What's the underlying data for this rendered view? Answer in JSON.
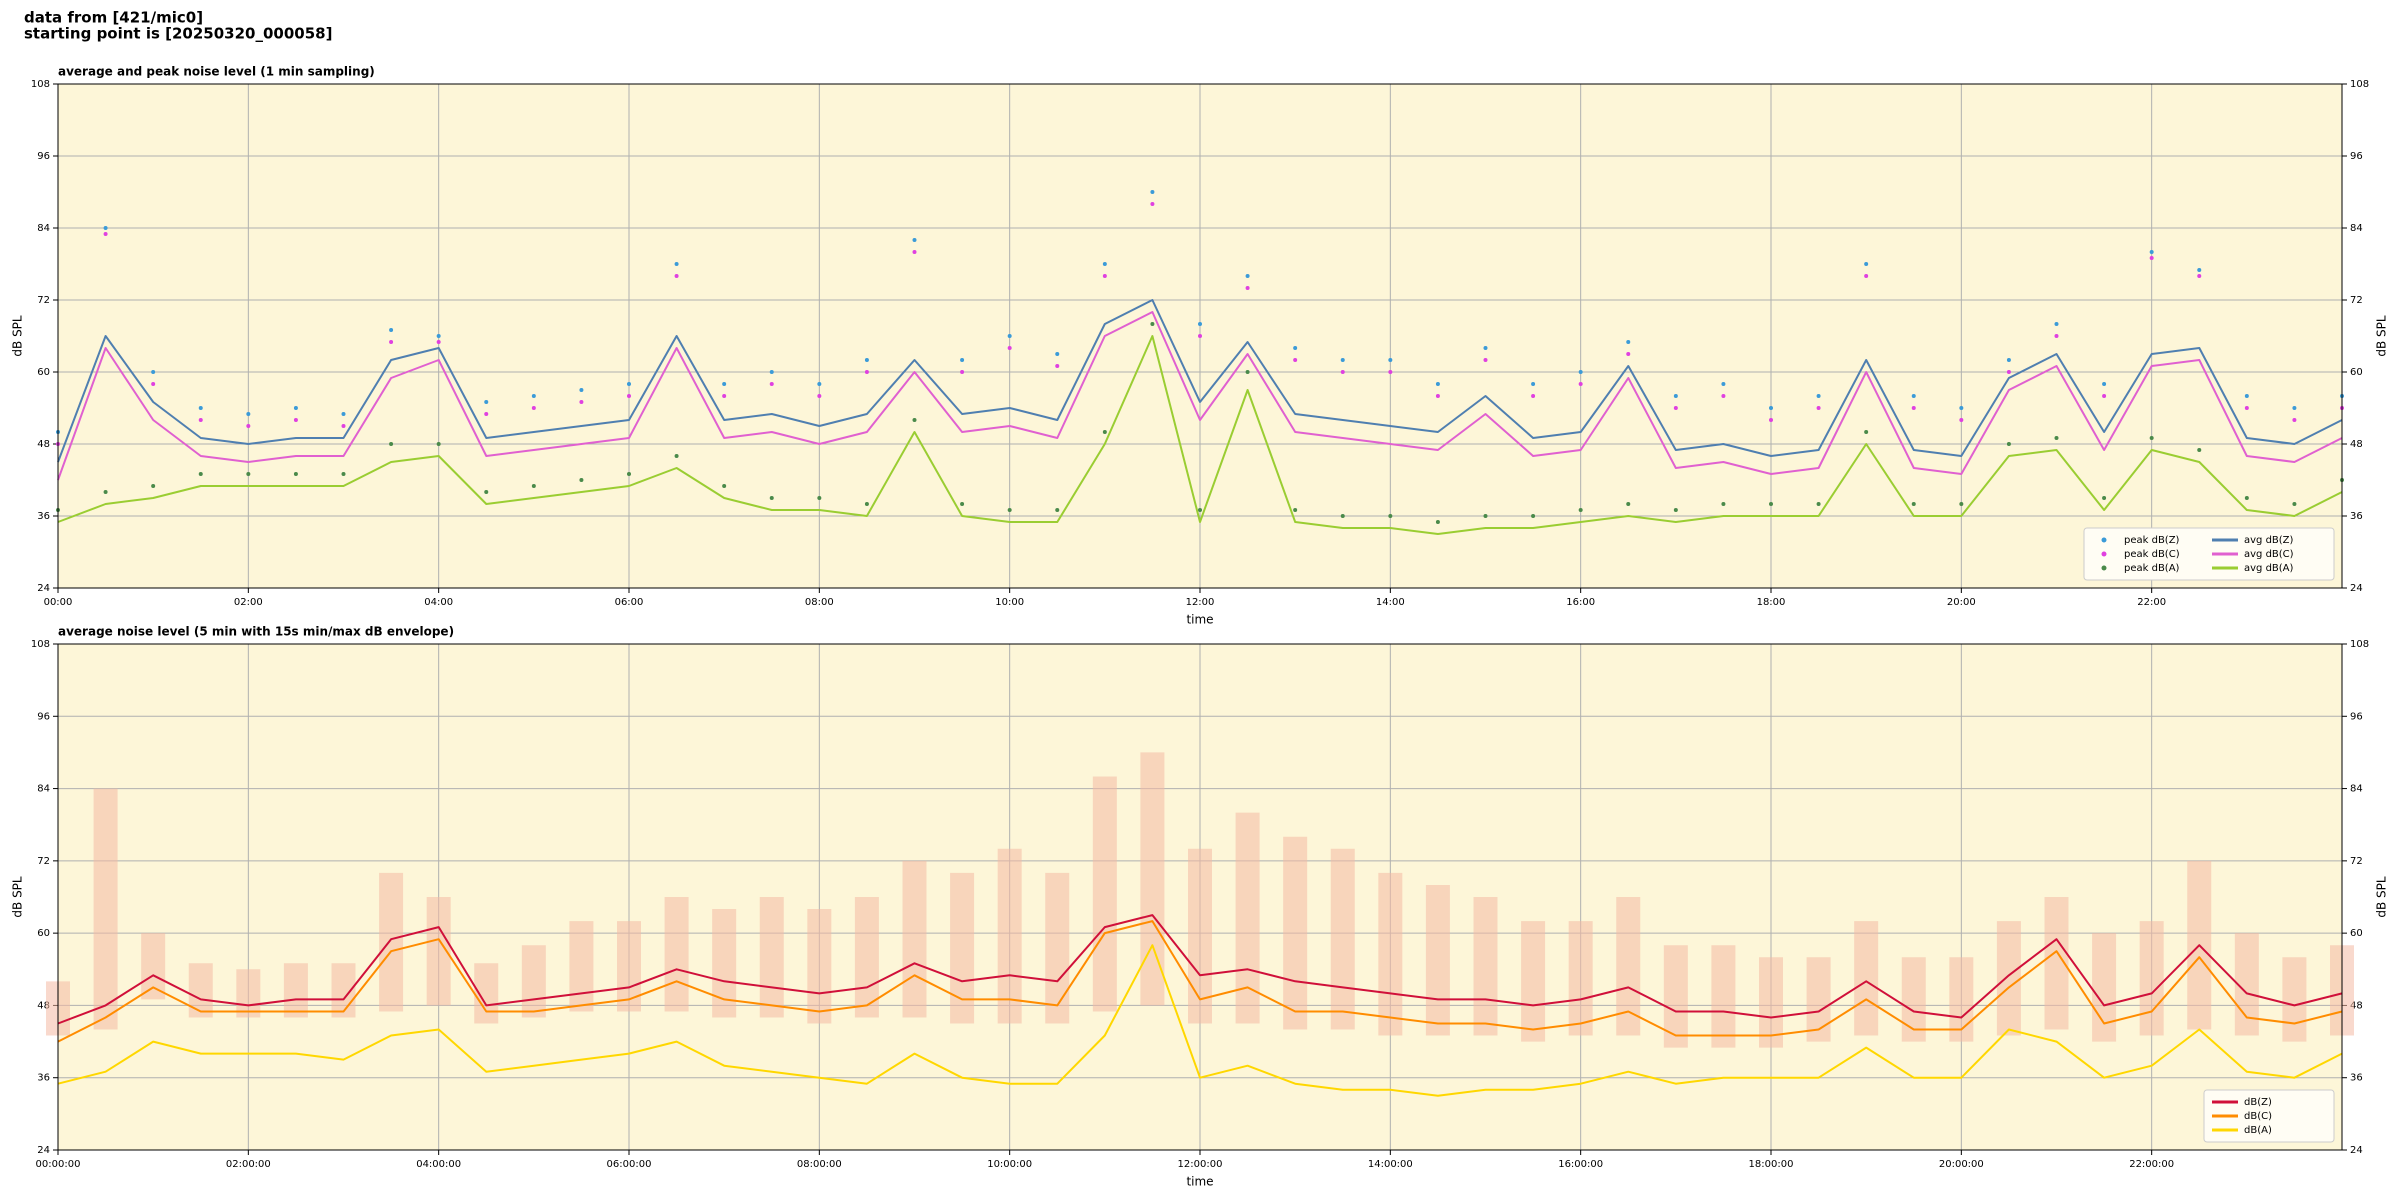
{
  "header": [
    "data from [421/mic0]",
    "starting point is [20250320_000058]"
  ],
  "chart_data": [
    {
      "type": "line",
      "title": "average and peak noise level (1 min sampling)",
      "xlabel": "time",
      "ylabel": "dB SPL",
      "background": "#fdf6d8",
      "grid": true,
      "legend": "lower right",
      "legend_columns": 2,
      "xlim": [
        0,
        24
      ],
      "ylim": [
        24,
        108
      ],
      "yticks": [
        24,
        36,
        48,
        60,
        72,
        84,
        96,
        108
      ],
      "xticks": [
        {
          "value": 0,
          "label": "00:00"
        },
        {
          "value": 2,
          "label": "02:00"
        },
        {
          "value": 4,
          "label": "04:00"
        },
        {
          "value": 6,
          "label": "06:00"
        },
        {
          "value": 8,
          "label": "08:00"
        },
        {
          "value": 10,
          "label": "10:00"
        },
        {
          "value": 12,
          "label": "12:00"
        },
        {
          "value": 14,
          "label": "14:00"
        },
        {
          "value": 16,
          "label": "16:00"
        },
        {
          "value": 18,
          "label": "18:00"
        },
        {
          "value": 20,
          "label": "20:00"
        },
        {
          "value": 22,
          "label": "22:00"
        }
      ],
      "x": [
        0,
        0.5,
        1,
        1.5,
        2,
        2.5,
        3,
        3.5,
        4,
        4.5,
        5,
        5.5,
        6,
        6.5,
        7,
        7.5,
        8,
        8.5,
        9,
        9.5,
        10,
        10.5,
        11,
        11.5,
        12,
        12.5,
        13,
        13.5,
        14,
        14.5,
        15,
        15.5,
        16,
        16.5,
        17,
        17.5,
        18,
        18.5,
        19,
        19.5,
        20,
        20.5,
        21,
        21.5,
        22,
        22.5,
        23,
        23.5,
        24
      ],
      "series": [
        {
          "name": "peak dB(Z)",
          "kind": "scatter",
          "color": "#3b9bd8",
          "values": [
            50,
            84,
            60,
            54,
            53,
            54,
            53,
            67,
            66,
            55,
            56,
            57,
            58,
            78,
            58,
            60,
            58,
            62,
            82,
            62,
            66,
            63,
            78,
            90,
            68,
            76,
            64,
            62,
            62,
            58,
            64,
            58,
            60,
            65,
            56,
            58,
            54,
            56,
            78,
            56,
            54,
            62,
            68,
            58,
            80,
            77,
            56,
            54,
            56
          ]
        },
        {
          "name": "peak dB(C)",
          "kind": "scatter",
          "color": "#e040e0",
          "values": [
            48,
            83,
            58,
            52,
            51,
            52,
            51,
            65,
            65,
            53,
            54,
            55,
            56,
            76,
            56,
            58,
            56,
            60,
            80,
            60,
            64,
            61,
            76,
            88,
            66,
            74,
            62,
            60,
            60,
            56,
            62,
            56,
            58,
            63,
            54,
            56,
            52,
            54,
            76,
            54,
            52,
            60,
            66,
            56,
            79,
            76,
            54,
            52,
            54
          ]
        },
        {
          "name": "peak dB(A)",
          "kind": "scatter",
          "color": "#4a8a4a",
          "values": [
            37,
            40,
            41,
            43,
            43,
            43,
            43,
            48,
            48,
            40,
            41,
            42,
            43,
            46,
            41,
            39,
            39,
            38,
            52,
            38,
            37,
            37,
            50,
            68,
            37,
            60,
            37,
            36,
            36,
            35,
            36,
            36,
            37,
            38,
            37,
            38,
            38,
            38,
            50,
            38,
            38,
            48,
            49,
            39,
            49,
            47,
            39,
            38,
            42
          ]
        },
        {
          "name": "avg dB(Z)",
          "kind": "line",
          "color": "#4f7fb0",
          "values": [
            45,
            66,
            55,
            49,
            48,
            49,
            49,
            62,
            64,
            49,
            50,
            51,
            52,
            66,
            52,
            53,
            51,
            53,
            62,
            53,
            54,
            52,
            68,
            72,
            55,
            65,
            53,
            52,
            51,
            50,
            56,
            49,
            50,
            61,
            47,
            48,
            46,
            47,
            62,
            47,
            46,
            59,
            63,
            50,
            63,
            64,
            49,
            48,
            52
          ]
        },
        {
          "name": "avg dB(C)",
          "kind": "line",
          "color": "#e060d0",
          "values": [
            42,
            64,
            52,
            46,
            45,
            46,
            46,
            59,
            62,
            46,
            47,
            48,
            49,
            64,
            49,
            50,
            48,
            50,
            60,
            50,
            51,
            49,
            66,
            70,
            52,
            63,
            50,
            49,
            48,
            47,
            53,
            46,
            47,
            59,
            44,
            45,
            43,
            44,
            60,
            44,
            43,
            57,
            61,
            47,
            61,
            62,
            46,
            45,
            49
          ]
        },
        {
          "name": "avg dB(A)",
          "kind": "line",
          "color": "#9acd32",
          "values": [
            35,
            38,
            39,
            41,
            41,
            41,
            41,
            45,
            46,
            38,
            39,
            40,
            41,
            44,
            39,
            37,
            37,
            36,
            50,
            36,
            35,
            35,
            48,
            66,
            35,
            57,
            35,
            34,
            34,
            33,
            34,
            34,
            35,
            36,
            35,
            36,
            36,
            36,
            48,
            36,
            36,
            46,
            47,
            37,
            47,
            45,
            37,
            36,
            40
          ]
        }
      ]
    },
    {
      "type": "line",
      "title": "average noise level (5 min with 15s min/max dB envelope)",
      "xlabel": "time",
      "ylabel": "dB SPL",
      "background": "#fdf6d8",
      "grid": true,
      "legend": "lower right",
      "legend_columns": 1,
      "xlim": [
        0,
        24
      ],
      "ylim": [
        24,
        108
      ],
      "yticks": [
        24,
        36,
        48,
        60,
        72,
        84,
        96,
        108
      ],
      "xticks": [
        {
          "value": 0,
          "label": "00:00:00"
        },
        {
          "value": 2,
          "label": "02:00:00"
        },
        {
          "value": 4,
          "label": "04:00:00"
        },
        {
          "value": 6,
          "label": "06:00:00"
        },
        {
          "value": 8,
          "label": "08:00:00"
        },
        {
          "value": 10,
          "label": "10:00:00"
        },
        {
          "value": 12,
          "label": "12:00:00"
        },
        {
          "value": 14,
          "label": "14:00:00"
        },
        {
          "value": 16,
          "label": "16:00:00"
        },
        {
          "value": 18,
          "label": "18:00:00"
        },
        {
          "value": 20,
          "label": "20:00:00"
        },
        {
          "value": 22,
          "label": "22:00:00"
        }
      ],
      "x": [
        0,
        0.5,
        1,
        1.5,
        2,
        2.5,
        3,
        3.5,
        4,
        4.5,
        5,
        5.5,
        6,
        6.5,
        7,
        7.5,
        8,
        8.5,
        9,
        9.5,
        10,
        10.5,
        11,
        11.5,
        12,
        12.5,
        13,
        13.5,
        14,
        14.5,
        15,
        15.5,
        16,
        16.5,
        17,
        17.5,
        18,
        18.5,
        19,
        19.5,
        20,
        20.5,
        21,
        21.5,
        22,
        22.5,
        23,
        23.5,
        24
      ],
      "envelope": {
        "color": "#f4b9a4",
        "upper": [
          52,
          84,
          60,
          55,
          54,
          55,
          55,
          70,
          66,
          55,
          58,
          62,
          62,
          66,
          64,
          66,
          64,
          66,
          72,
          70,
          74,
          70,
          86,
          90,
          74,
          80,
          76,
          74,
          70,
          68,
          66,
          62,
          62,
          66,
          58,
          58,
          56,
          56,
          62,
          56,
          56,
          62,
          66,
          60,
          62,
          72,
          60,
          56,
          58
        ],
        "lower": [
          43,
          44,
          49,
          46,
          46,
          46,
          46,
          47,
          48,
          45,
          46,
          47,
          47,
          47,
          46,
          46,
          45,
          46,
          46,
          45,
          45,
          45,
          47,
          48,
          45,
          45,
          44,
          44,
          43,
          43,
          43,
          42,
          43,
          43,
          41,
          41,
          41,
          42,
          43,
          42,
          42,
          43,
          44,
          42,
          43,
          44,
          43,
          42,
          43
        ]
      },
      "series": [
        {
          "name": "dB(Z)",
          "kind": "line",
          "color": "#d0103a",
          "values": [
            45,
            48,
            53,
            49,
            48,
            49,
            49,
            59,
            61,
            48,
            49,
            50,
            51,
            54,
            52,
            51,
            50,
            51,
            55,
            52,
            53,
            52,
            61,
            63,
            53,
            54,
            52,
            51,
            50,
            49,
            49,
            48,
            49,
            51,
            47,
            47,
            46,
            47,
            52,
            47,
            46,
            53,
            59,
            48,
            50,
            58,
            50,
            48,
            50
          ]
        },
        {
          "name": "dB(C)",
          "kind": "line",
          "color": "#ff8c00",
          "values": [
            42,
            46,
            51,
            47,
            47,
            47,
            47,
            57,
            59,
            47,
            47,
            48,
            49,
            52,
            49,
            48,
            47,
            48,
            53,
            49,
            49,
            48,
            60,
            62,
            49,
            51,
            47,
            47,
            46,
            45,
            45,
            44,
            45,
            47,
            43,
            43,
            43,
            44,
            49,
            44,
            44,
            51,
            57,
            45,
            47,
            56,
            46,
            45,
            47
          ]
        },
        {
          "name": "dB(A)",
          "kind": "line",
          "color": "#ffd700",
          "values": [
            35,
            37,
            42,
            40,
            40,
            40,
            39,
            43,
            44,
            37,
            38,
            39,
            40,
            42,
            38,
            37,
            36,
            35,
            40,
            36,
            35,
            35,
            43,
            58,
            36,
            38,
            35,
            34,
            34,
            33,
            34,
            34,
            35,
            37,
            35,
            36,
            36,
            36,
            41,
            36,
            36,
            44,
            42,
            36,
            38,
            44,
            37,
            36,
            40
          ]
        }
      ]
    }
  ]
}
